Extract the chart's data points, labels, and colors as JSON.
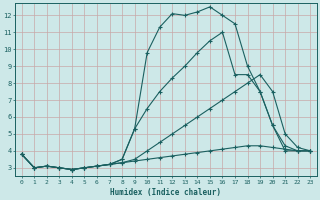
{
  "xlabel": "Humidex (Indice chaleur)",
  "xlim": [
    -0.5,
    23.5
  ],
  "ylim": [
    2.5,
    12.7
  ],
  "yticks": [
    3,
    4,
    5,
    6,
    7,
    8,
    9,
    10,
    11,
    12
  ],
  "xticks": [
    0,
    1,
    2,
    3,
    4,
    5,
    6,
    7,
    8,
    9,
    10,
    11,
    12,
    13,
    14,
    15,
    16,
    17,
    18,
    19,
    20,
    21,
    22,
    23
  ],
  "background_color": "#cde8e8",
  "grid_color": "#c8a8a8",
  "line_color": "#1a6060",
  "lines": [
    {
      "x": [
        0,
        1,
        2,
        3,
        4,
        5,
        6,
        7,
        8,
        9,
        10,
        11,
        12,
        13,
        14,
        15,
        16,
        17,
        18,
        19,
        20,
        21,
        22,
        23
      ],
      "y": [
        3.8,
        3.0,
        3.1,
        3.0,
        2.9,
        3.0,
        3.1,
        3.2,
        3.3,
        3.4,
        3.5,
        3.6,
        3.7,
        3.8,
        3.9,
        4.0,
        4.1,
        4.2,
        4.3,
        4.3,
        4.2,
        4.1,
        4.0,
        4.0
      ]
    },
    {
      "x": [
        0,
        1,
        2,
        3,
        4,
        5,
        6,
        7,
        8,
        9,
        10,
        11,
        12,
        13,
        14,
        15,
        16,
        17,
        18,
        19,
        20,
        21,
        22,
        23
      ],
      "y": [
        3.8,
        3.0,
        3.1,
        3.0,
        2.9,
        3.0,
        3.1,
        3.2,
        3.3,
        3.5,
        4.0,
        4.5,
        5.0,
        5.5,
        6.0,
        6.5,
        7.0,
        7.5,
        8.0,
        8.5,
        7.5,
        5.0,
        4.2,
        4.0
      ]
    },
    {
      "x": [
        0,
        1,
        2,
        3,
        4,
        5,
        6,
        7,
        8,
        9,
        10,
        11,
        12,
        13,
        14,
        15,
        16,
        17,
        18,
        19,
        20,
        21,
        22,
        23
      ],
      "y": [
        3.8,
        3.0,
        3.1,
        3.0,
        2.9,
        3.0,
        3.1,
        3.2,
        3.5,
        5.3,
        6.5,
        7.5,
        8.3,
        9.0,
        9.8,
        10.5,
        11.0,
        8.5,
        8.5,
        7.5,
        5.5,
        4.0,
        4.0,
        4.0
      ]
    },
    {
      "x": [
        0,
        1,
        2,
        3,
        4,
        5,
        6,
        7,
        8,
        9,
        10,
        11,
        12,
        13,
        14,
        15,
        16,
        17,
        18,
        19,
        20,
        21,
        22,
        23
      ],
      "y": [
        3.8,
        3.0,
        3.1,
        3.0,
        2.9,
        3.0,
        3.1,
        3.2,
        3.5,
        5.3,
        9.8,
        11.3,
        12.1,
        12.0,
        12.2,
        12.5,
        12.0,
        11.5,
        9.0,
        7.5,
        5.5,
        4.3,
        4.0,
        4.0
      ]
    }
  ]
}
